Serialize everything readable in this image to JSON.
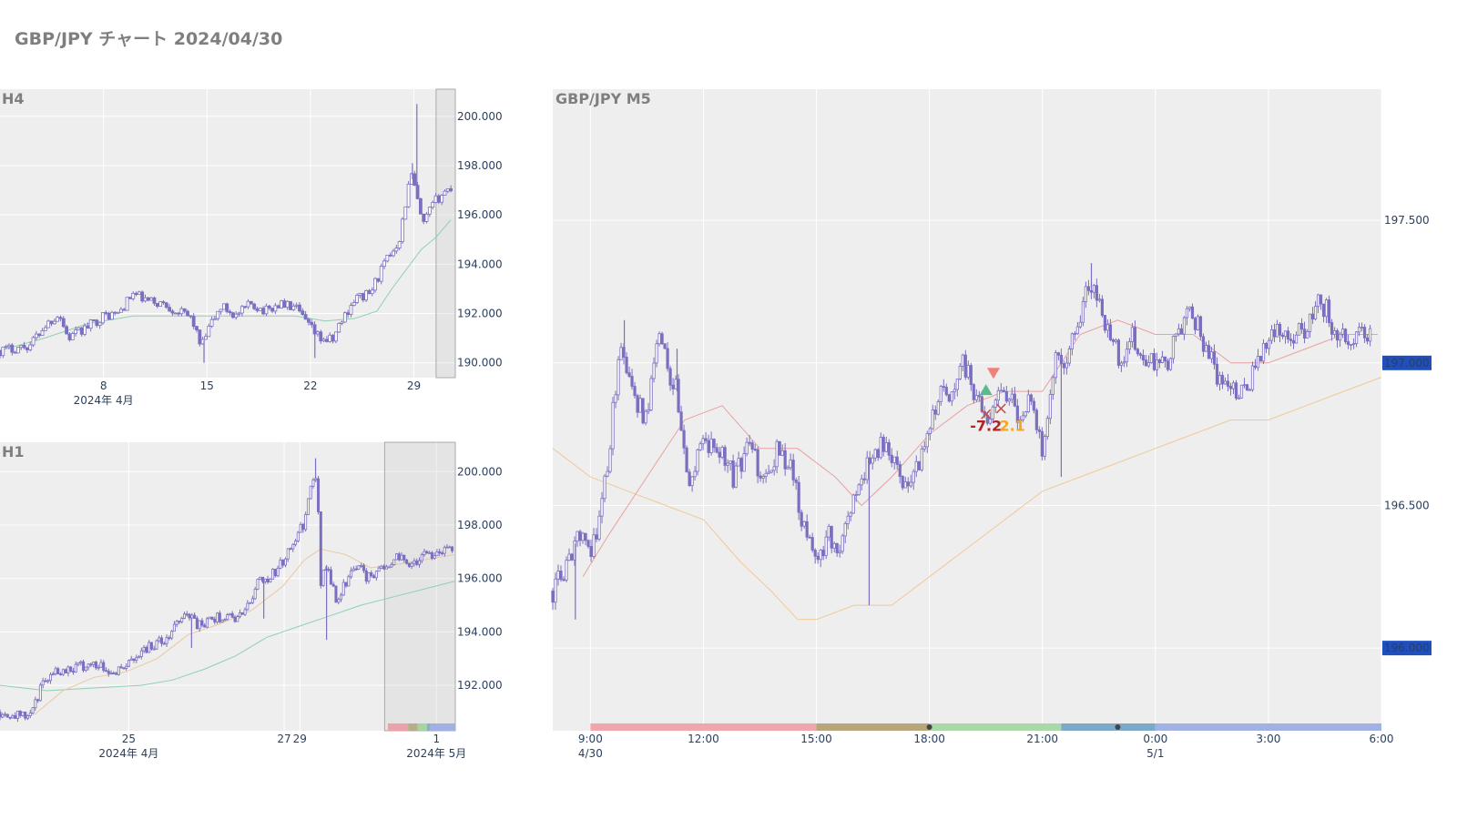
{
  "page": {
    "title": "GBP/JPY チャート 2024/04/30"
  },
  "chart_data": [
    {
      "id": "h4",
      "type": "candlestick",
      "title": "H4",
      "ylim": [
        189.4,
        201.1
      ],
      "xlim": [
        1,
        31.8
      ],
      "y_ticks": [
        190,
        192,
        194,
        196,
        198,
        200
      ],
      "y_tick_labels": [
        "190.000",
        "192.000",
        "194.000",
        "196.000",
        "198.000",
        "200.000"
      ],
      "x_ticks": [
        {
          "x": 8,
          "label": "8",
          "sub": "2024年 4月"
        },
        {
          "x": 15,
          "label": "15",
          "sub": ""
        },
        {
          "x": 22,
          "label": "22",
          "sub": ""
        },
        {
          "x": 29,
          "label": "29",
          "sub": ""
        }
      ],
      "highlight": [
        30.5,
        31.8
      ],
      "colors": {
        "candle": "#7a6fc0",
        "ma": "#8fd0b0"
      },
      "path": [
        [
          1,
          190.5
        ],
        [
          3,
          190.7
        ],
        [
          4,
          191.5
        ],
        [
          5,
          192.0
        ],
        [
          5.6,
          191.0
        ],
        [
          6.5,
          191.3
        ],
        [
          8,
          191.9
        ],
        [
          9,
          192.0
        ],
        [
          10,
          192.8
        ],
        [
          11,
          192.5
        ],
        [
          12,
          192.4
        ],
        [
          13,
          192.1
        ],
        [
          14,
          191.8
        ],
        [
          14.6,
          190.6
        ],
        [
          15.2,
          191.5
        ],
        [
          16,
          192.3
        ],
        [
          17,
          191.9
        ],
        [
          18,
          192.4
        ],
        [
          19,
          192.1
        ],
        [
          20,
          192.4
        ],
        [
          21,
          192.2
        ],
        [
          22,
          191.4
        ],
        [
          22.6,
          191.0
        ],
        [
          23.5,
          190.9
        ],
        [
          24,
          191.6
        ],
        [
          25,
          192.6
        ],
        [
          26,
          192.8
        ],
        [
          27,
          194.0
        ],
        [
          28,
          195.0
        ],
        [
          28.8,
          197.7
        ],
        [
          29.2,
          196.7
        ],
        [
          29.6,
          195.5
        ],
        [
          30,
          196.1
        ],
        [
          30.5,
          196.6
        ],
        [
          31,
          196.9
        ],
        [
          31.5,
          197.1
        ]
      ],
      "spikes": [
        [
          29.2,
          200.5
        ],
        [
          28.9,
          198.1
        ],
        [
          22.3,
          190.2
        ],
        [
          14.8,
          190.0
        ]
      ],
      "ma": [
        [
          1,
          190.5
        ],
        [
          4,
          191.0
        ],
        [
          7,
          191.6
        ],
        [
          10,
          191.9
        ],
        [
          14,
          191.9
        ],
        [
          18,
          191.9
        ],
        [
          21,
          191.9
        ],
        [
          23,
          191.7
        ],
        [
          25,
          191.8
        ],
        [
          26.5,
          192.1
        ],
        [
          27.5,
          193.0
        ],
        [
          28.5,
          193.8
        ],
        [
          29.5,
          194.6
        ],
        [
          30.5,
          195.1
        ],
        [
          31.5,
          195.8
        ]
      ]
    },
    {
      "id": "h1",
      "type": "candlestick",
      "title": "H1",
      "ylim": [
        190.3,
        201.1
      ],
      "xlim": [
        0,
        29
      ],
      "y_ticks": [
        192,
        194,
        196,
        198,
        200
      ],
      "y_tick_labels": [
        "192.000",
        "194.000",
        "196.000",
        "198.000",
        "200.000"
      ],
      "x_ticks": [
        {
          "x": 8.2,
          "label": "25",
          "sub": "2024年 4月"
        },
        {
          "x": 18.1,
          "label": "27",
          "sub": ""
        },
        {
          "x": 19.1,
          "label": "29",
          "sub": ""
        },
        {
          "x": 27.8,
          "label": "1",
          "sub": "2024年 5月"
        }
      ],
      "highlight": [
        24.5,
        29
      ],
      "sessions": [
        {
          "from": 24.7,
          "to": 26.0,
          "color": "#e9a3ad"
        },
        {
          "from": 26.0,
          "to": 26.6,
          "color": "#b8ad8a"
        },
        {
          "from": 26.6,
          "to": 27.2,
          "color": "#a6d3a6"
        },
        {
          "from": 27.2,
          "to": 27.4,
          "color": "#8ab0c8"
        },
        {
          "from": 27.4,
          "to": 29.0,
          "color": "#a1b1e6"
        }
      ],
      "colors": {
        "candle": "#7a6fc0",
        "ma": "#8fd0b0",
        "ma2": "#e8c9a0"
      },
      "path": [
        [
          0,
          191.0
        ],
        [
          1,
          190.9
        ],
        [
          1.6,
          190.8
        ],
        [
          2.2,
          191.2
        ],
        [
          2.6,
          191.9
        ],
        [
          3.2,
          192.5
        ],
        [
          4,
          192.6
        ],
        [
          5,
          192.7
        ],
        [
          6,
          192.8
        ],
        [
          6.5,
          192.8
        ],
        [
          7,
          192.5
        ],
        [
          7.5,
          192.6
        ],
        [
          8,
          192.7
        ],
        [
          8.5,
          193.0
        ],
        [
          9,
          193.3
        ],
        [
          10,
          193.6
        ],
        [
          10.5,
          193.6
        ],
        [
          11,
          194.0
        ],
        [
          11.5,
          194.6
        ],
        [
          12,
          194.7
        ],
        [
          12.5,
          194.3
        ],
        [
          13,
          194.2
        ],
        [
          13.5,
          194.5
        ],
        [
          14.5,
          194.6
        ],
        [
          15,
          194.5
        ],
        [
          15.5,
          194.7
        ],
        [
          16,
          195.2
        ],
        [
          16.5,
          196.1
        ],
        [
          17,
          196.0
        ],
        [
          17.6,
          196.3
        ],
        [
          18.2,
          196.8
        ],
        [
          18.8,
          197.5
        ],
        [
          19.4,
          198.1
        ],
        [
          19.8,
          199.5
        ],
        [
          20.2,
          199.8
        ],
        [
          20.4,
          195.8
        ],
        [
          20.8,
          196.5
        ],
        [
          21.4,
          195.2
        ],
        [
          21.8,
          195.6
        ],
        [
          22.2,
          196.1
        ],
        [
          22.8,
          196.6
        ],
        [
          23.4,
          196.0
        ],
        [
          24,
          196.3
        ],
        [
          24.6,
          196.5
        ],
        [
          25.2,
          196.8
        ],
        [
          26,
          196.6
        ],
        [
          26.6,
          196.7
        ],
        [
          27.2,
          196.9
        ],
        [
          28,
          197.0
        ],
        [
          28.8,
          197.0
        ]
      ],
      "spikes": [
        [
          20.1,
          200.5
        ],
        [
          20.8,
          193.7
        ],
        [
          16.8,
          194.5
        ],
        [
          12.2,
          193.4
        ]
      ],
      "ma": [
        [
          0,
          192.0
        ],
        [
          3,
          191.8
        ],
        [
          6,
          191.9
        ],
        [
          9,
          192.0
        ],
        [
          11,
          192.2
        ],
        [
          13,
          192.6
        ],
        [
          15,
          193.1
        ],
        [
          17,
          193.8
        ],
        [
          19,
          194.2
        ],
        [
          21,
          194.6
        ],
        [
          23,
          195.0
        ],
        [
          25,
          195.3
        ],
        [
          27,
          195.6
        ],
        [
          29,
          195.9
        ]
      ],
      "ma2": [
        [
          2.2,
          190.9
        ],
        [
          4,
          191.8
        ],
        [
          6,
          192.3
        ],
        [
          8,
          192.5
        ],
        [
          10,
          193.0
        ],
        [
          12,
          193.9
        ],
        [
          14,
          194.3
        ],
        [
          16,
          194.8
        ],
        [
          18,
          195.7
        ],
        [
          19.4,
          196.7
        ],
        [
          20.4,
          197.1
        ],
        [
          22,
          196.9
        ],
        [
          23.6,
          196.4
        ],
        [
          25,
          196.5
        ],
        [
          27,
          196.7
        ],
        [
          29,
          196.9
        ]
      ]
    },
    {
      "id": "m5",
      "type": "candlestick",
      "title": "GBP/JPY M5",
      "ylim": [
        195.71,
        197.96
      ],
      "xlim": [
        8.0,
        30.0
      ],
      "y_ticks": [
        196,
        196.5,
        197,
        197.5
      ],
      "y_tick_labels": [
        "196.000",
        "196.500",
        "197.000",
        "197.500"
      ],
      "y_highlight_labels": [
        "197.000",
        "196.000"
      ],
      "x_ticks": [
        {
          "x": 9,
          "label": "9:00",
          "sub": "4/30"
        },
        {
          "x": 12,
          "label": "12:00",
          "sub": ""
        },
        {
          "x": 15,
          "label": "15:00",
          "sub": ""
        },
        {
          "x": 18,
          "label": "18:00",
          "sub": ""
        },
        {
          "x": 21,
          "label": "21:00",
          "sub": ""
        },
        {
          "x": 24,
          "label": "0:00",
          "sub": "5/1"
        },
        {
          "x": 27,
          "label": "3:00",
          "sub": ""
        },
        {
          "x": 30,
          "label": "6:00",
          "sub": ""
        }
      ],
      "sessions": [
        {
          "from": 9.0,
          "to": 15.0,
          "color": "#f0a6ad"
        },
        {
          "from": 15.0,
          "to": 18.0,
          "color": "#b8a57a"
        },
        {
          "from": 18.0,
          "to": 21.5,
          "color": "#a9d9a9"
        },
        {
          "from": 21.5,
          "to": 24.0,
          "color": "#7aaac8"
        },
        {
          "from": 24.0,
          "to": 30.0,
          "color": "#a1b1e6"
        }
      ],
      "session_dots": [
        18.0,
        23.0
      ],
      "colors": {
        "candle": "#7a6fc0",
        "ma_fast": "#e8a0a0",
        "ma_slow": "#f0c898",
        "buy": "#5cb88e",
        "sell": "#f0807a",
        "loss": "#b22222",
        "gain": "#f5a623"
      },
      "path": [
        [
          8.0,
          196.2
        ],
        [
          8.4,
          196.3
        ],
        [
          8.7,
          196.4
        ],
        [
          9.0,
          196.3
        ],
        [
          9.3,
          196.5
        ],
        [
          9.5,
          196.7
        ],
        [
          9.8,
          197.1
        ],
        [
          10.1,
          196.9
        ],
        [
          10.5,
          196.8
        ],
        [
          10.8,
          197.1
        ],
        [
          11.0,
          197.0
        ],
        [
          11.3,
          196.9
        ],
        [
          11.6,
          196.6
        ],
        [
          12.0,
          196.7
        ],
        [
          12.4,
          196.7
        ],
        [
          12.8,
          196.6
        ],
        [
          13.2,
          196.7
        ],
        [
          13.6,
          196.6
        ],
        [
          14.0,
          196.7
        ],
        [
          14.4,
          196.6
        ],
        [
          14.7,
          196.4
        ],
        [
          15.0,
          196.3
        ],
        [
          15.3,
          196.4
        ],
        [
          15.6,
          196.3
        ],
        [
          15.9,
          196.5
        ],
        [
          16.2,
          196.6
        ],
        [
          16.5,
          196.7
        ],
        [
          16.8,
          196.7
        ],
        [
          17.2,
          196.6
        ],
        [
          17.6,
          196.6
        ],
        [
          18.0,
          196.8
        ],
        [
          18.3,
          196.9
        ],
        [
          18.6,
          196.9
        ],
        [
          18.9,
          197.0
        ],
        [
          19.2,
          196.9
        ],
        [
          19.5,
          196.8
        ],
        [
          19.8,
          196.9
        ],
        [
          20.1,
          196.9
        ],
        [
          20.4,
          196.8
        ],
        [
          20.7,
          196.9
        ],
        [
          21.0,
          196.7
        ],
        [
          21.3,
          197.0
        ],
        [
          21.6,
          197.0
        ],
        [
          21.9,
          197.1
        ],
        [
          22.2,
          197.3
        ],
        [
          22.5,
          197.2
        ],
        [
          22.8,
          197.1
        ],
        [
          23.1,
          197.0
        ],
        [
          23.4,
          197.1
        ],
        [
          23.7,
          197.0
        ],
        [
          24.0,
          197.0
        ],
        [
          24.3,
          197.0
        ],
        [
          24.6,
          197.1
        ],
        [
          24.9,
          197.2
        ],
        [
          25.2,
          197.1
        ],
        [
          25.5,
          197.0
        ],
        [
          25.8,
          196.9
        ],
        [
          26.1,
          196.9
        ],
        [
          26.4,
          196.9
        ],
        [
          26.7,
          197.0
        ],
        [
          27.0,
          197.1
        ],
        [
          27.3,
          197.1
        ],
        [
          27.6,
          197.1
        ],
        [
          27.9,
          197.1
        ],
        [
          28.2,
          197.2
        ],
        [
          28.5,
          197.2
        ],
        [
          28.8,
          197.1
        ],
        [
          29.1,
          197.1
        ],
        [
          29.4,
          197.1
        ],
        [
          29.7,
          197.1
        ]
      ],
      "spikes": [
        [
          22.3,
          197.35
        ],
        [
          16.4,
          196.15
        ],
        [
          11.3,
          197.05
        ],
        [
          8.6,
          196.1
        ],
        [
          21.5,
          196.6
        ],
        [
          9.9,
          197.15
        ]
      ],
      "ma_fast": [
        [
          8.8,
          196.25
        ],
        [
          9.5,
          196.4
        ],
        [
          10.5,
          196.6
        ],
        [
          11.5,
          196.8
        ],
        [
          12.5,
          196.85
        ],
        [
          13.5,
          196.7
        ],
        [
          14.5,
          196.7
        ],
        [
          15.5,
          196.6
        ],
        [
          16.2,
          196.5
        ],
        [
          17.0,
          196.6
        ],
        [
          18.0,
          196.75
        ],
        [
          19.0,
          196.85
        ],
        [
          20.0,
          196.9
        ],
        [
          21.0,
          196.9
        ],
        [
          22.0,
          197.1
        ],
        [
          23.0,
          197.15
        ],
        [
          24.0,
          197.1
        ],
        [
          25.0,
          197.1
        ],
        [
          26.0,
          197.0
        ],
        [
          27.0,
          197.0
        ],
        [
          28.0,
          197.05
        ],
        [
          29.0,
          197.1
        ],
        [
          29.9,
          197.1
        ]
      ],
      "ma_slow": [
        [
          8.0,
          196.7
        ],
        [
          9.0,
          196.6
        ],
        [
          10.0,
          196.55
        ],
        [
          11.0,
          196.5
        ],
        [
          12.0,
          196.45
        ],
        [
          13.0,
          196.3
        ],
        [
          13.8,
          196.2
        ],
        [
          14.5,
          196.1
        ],
        [
          15.0,
          196.1
        ],
        [
          16.0,
          196.15
        ],
        [
          17.0,
          196.15
        ],
        [
          18.0,
          196.25
        ],
        [
          19.0,
          196.35
        ],
        [
          20.0,
          196.45
        ],
        [
          21.0,
          196.55
        ],
        [
          22.0,
          196.6
        ],
        [
          23.0,
          196.65
        ],
        [
          24.0,
          196.7
        ],
        [
          25.0,
          196.75
        ],
        [
          26.0,
          196.8
        ],
        [
          27.0,
          196.8
        ],
        [
          28.0,
          196.85
        ],
        [
          29.0,
          196.9
        ],
        [
          30.0,
          196.95
        ]
      ],
      "trades": [
        {
          "side": "buy",
          "x": 19.5,
          "y": 196.9
        },
        {
          "side": "sell",
          "x": 19.7,
          "y": 196.97
        },
        {
          "side": "exit",
          "x": 19.5,
          "y": 196.82
        },
        {
          "side": "exit",
          "x": 19.9,
          "y": 196.84
        }
      ],
      "trade_labels": [
        {
          "text": "-7.2",
          "x": 19.5,
          "y": 196.78,
          "kind": "loss"
        },
        {
          "text": "2.1",
          "x": 20.2,
          "y": 196.78,
          "kind": "gain"
        }
      ]
    }
  ]
}
